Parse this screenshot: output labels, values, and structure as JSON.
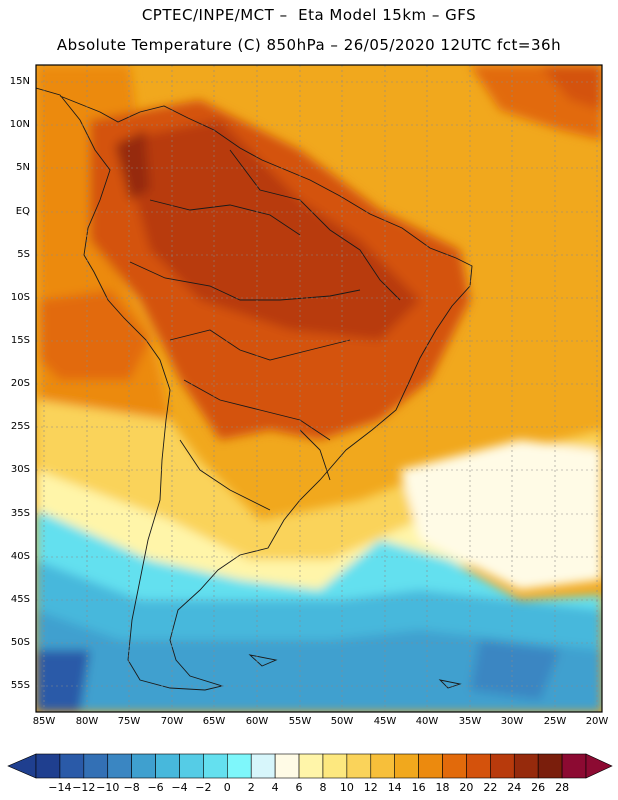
{
  "header": {
    "line1": "CPTEC/INPE/MCT –  Eta Model 15km – GFS",
    "line2": "Absolute Temperature (C) 850hPa – 26/05/2020 12UTC fct=36h"
  },
  "map": {
    "lat_labels": [
      "15N",
      "10N",
      "5N",
      "EQ",
      "5S",
      "10S",
      "15S",
      "20S",
      "25S",
      "30S",
      "35S",
      "40S",
      "45S",
      "50S",
      "55S"
    ],
    "lon_labels": [
      "85W",
      "80W",
      "75W",
      "70W",
      "65W",
      "60W",
      "55W",
      "50W",
      "45W",
      "40W",
      "35W",
      "30W",
      "25W",
      "20W"
    ],
    "grid": "dotted"
  },
  "colorbar": {
    "labels": [
      "-14",
      "-12",
      "-10",
      "-8",
      "-6",
      "-4",
      "-2",
      "0",
      "2",
      "4",
      "6",
      "8",
      "10",
      "12",
      "14",
      "16",
      "18",
      "20",
      "22",
      "24",
      "26",
      "28"
    ],
    "colors": [
      "#1f3f8f",
      "#2a5aa8",
      "#3370b5",
      "#3a86c2",
      "#3fa0cf",
      "#47b8dc",
      "#55cce6",
      "#64e0ef",
      "#7ef7fb",
      "#d7f6fb",
      "#fffbe6",
      "#fff5a9",
      "#fde87f",
      "#fad35a",
      "#f7bf3a",
      "#f1a81d",
      "#ec8a0e",
      "#e26a0b",
      "#d4520c",
      "#b83a0c",
      "#962a0c",
      "#7a1e0c",
      "#8c0a32"
    ],
    "under_color": "#1f3f8f",
    "over_color": "#8c0a32"
  }
}
